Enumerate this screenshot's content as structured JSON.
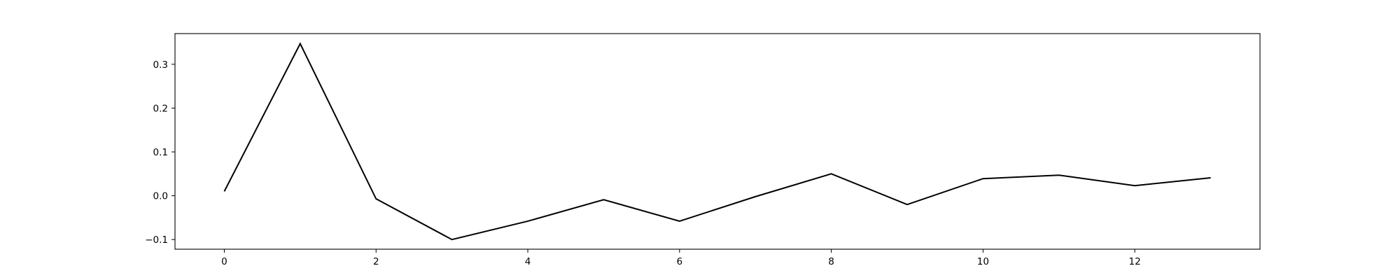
{
  "chart_data": {
    "type": "line",
    "title": "",
    "xlabel": "",
    "ylabel": "",
    "x": [
      0,
      1,
      2,
      3,
      4,
      5,
      6,
      7,
      8,
      9,
      10,
      11,
      12,
      13
    ],
    "series": [
      {
        "values": [
          0.01,
          0.347,
          -0.007,
          -0.1,
          -0.058,
          -0.009,
          -0.058,
          -0.002,
          0.05,
          -0.02,
          0.039,
          0.047,
          0.023,
          0.041
        ],
        "color": "#000000"
      }
    ],
    "xlim": [
      -0.65,
      13.65
    ],
    "ylim": [
      -0.122,
      0.37
    ],
    "xticks": [
      0,
      2,
      4,
      6,
      8,
      10,
      12
    ],
    "xtick_labels": [
      "0",
      "2",
      "4",
      "6",
      "8",
      "10",
      "12"
    ],
    "yticks": [
      -0.1,
      0.0,
      0.1,
      0.2,
      0.3
    ],
    "ytick_labels": [
      "−0.1",
      "0.0",
      "0.1",
      "0.2",
      "0.3"
    ],
    "grid": false,
    "legend": false
  }
}
